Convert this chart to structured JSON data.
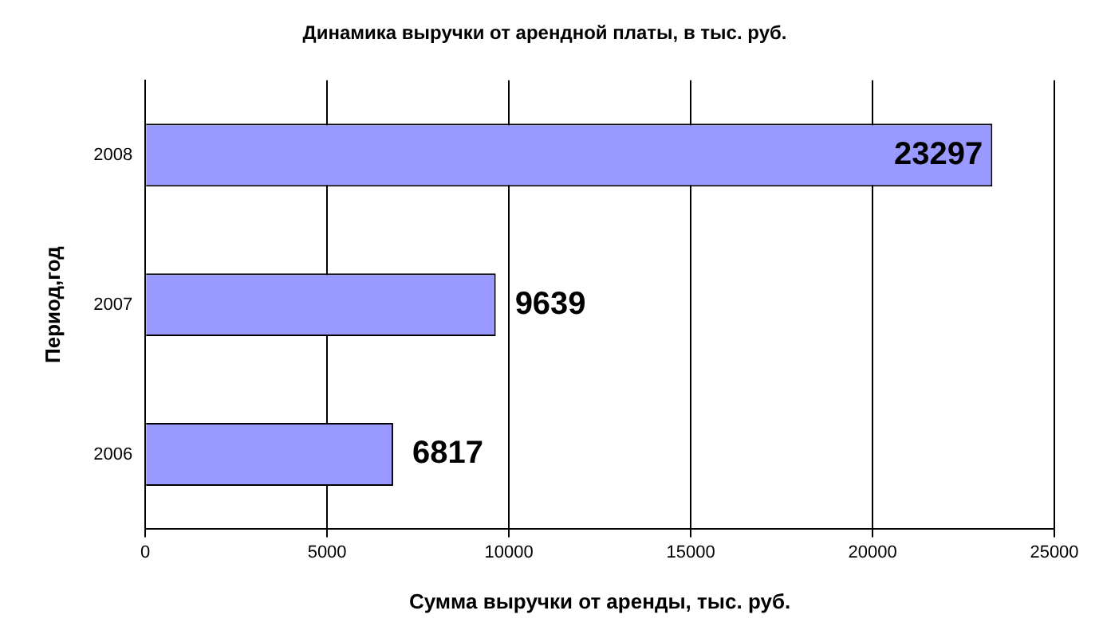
{
  "chart_data": {
    "type": "bar",
    "orientation": "horizontal",
    "title": "Динамика выручки от арендной платы, в тыс. руб.",
    "xlabel": "Сумма выручки от аренды, тыс. руб.",
    "ylabel": "Период,год",
    "categories": [
      "2008",
      "2007",
      "2006"
    ],
    "values": [
      23297,
      9639,
      6817
    ],
    "color": "#9999ff",
    "xlim": [
      0,
      25000
    ],
    "xticks": [
      0,
      5000,
      10000,
      15000,
      20000,
      25000
    ],
    "grid": "x",
    "legend": false,
    "data_labels": true
  }
}
